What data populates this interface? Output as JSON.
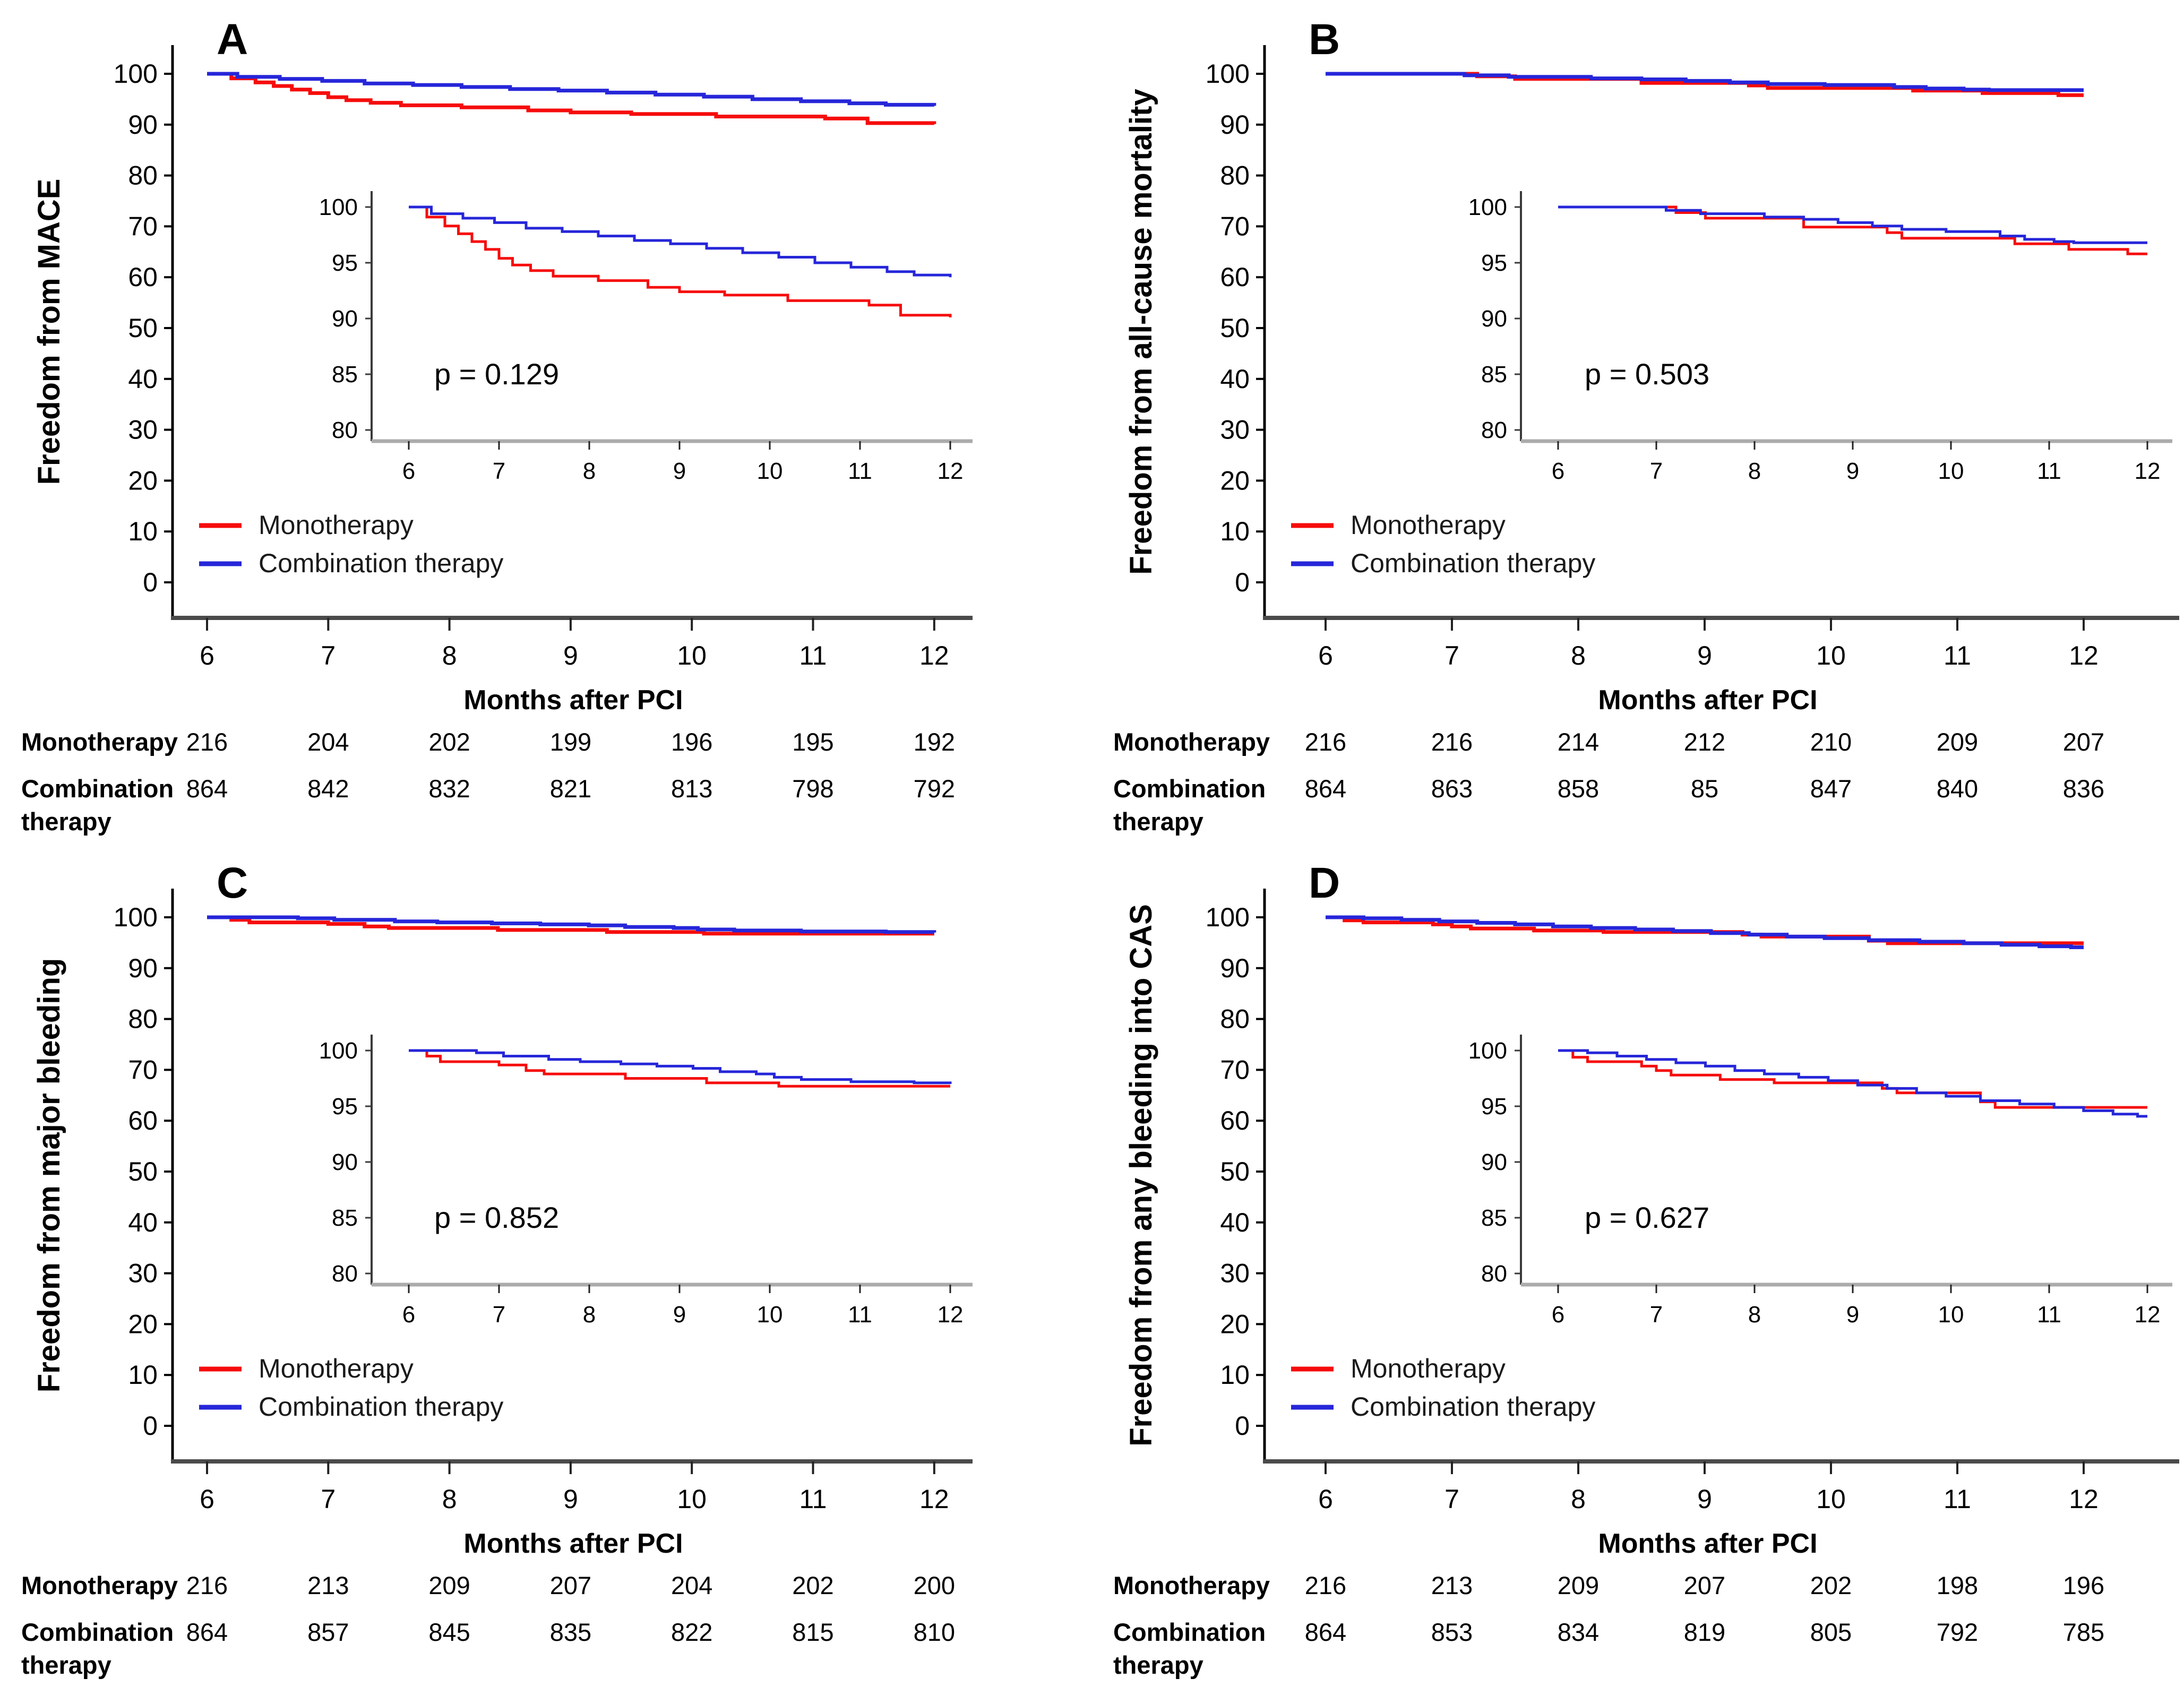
{
  "figure": {
    "background": "#ffffff",
    "description_labels": [
      "A",
      "B",
      "C",
      "D"
    ]
  },
  "colors": {
    "monotherapy": "#f60c0c",
    "combination": "#2626d9",
    "main_axis_line": "#4a4a4a",
    "inset_axis_line": "#ababab",
    "tick_text": "#000000"
  },
  "chart_data": [
    {
      "type": "line",
      "step": true,
      "panel": "A",
      "ylabel": "Freedom from MACE",
      "xlabel": "Months after PCI",
      "xlim": [
        6,
        12
      ],
      "ylim_main": [
        0,
        100
      ],
      "ylim_inset": [
        80,
        100
      ],
      "x_ticks": [
        6,
        7,
        8,
        9,
        10,
        11,
        12
      ],
      "y_ticks_main": [
        100,
        90,
        80,
        70,
        60,
        50,
        40,
        30,
        20,
        10,
        0
      ],
      "y_ticks_inset": [
        100,
        95,
        90,
        85,
        80
      ],
      "p_value_text": "p = 0.129",
      "legend": [
        "Monotherapy",
        "Combination therapy"
      ],
      "series": [
        {
          "name": "Monotherapy",
          "color_key": "monotherapy",
          "points": [
            [
              6,
              100
            ],
            [
              6.2,
              99.1
            ],
            [
              6.4,
              98.3
            ],
            [
              6.55,
              97.6
            ],
            [
              6.7,
              96.9
            ],
            [
              6.85,
              96.2
            ],
            [
              7.0,
              95.4
            ],
            [
              7.15,
              94.8
            ],
            [
              7.35,
              94.3
            ],
            [
              7.6,
              93.8
            ],
            [
              8.1,
              93.4
            ],
            [
              8.65,
              92.8
            ],
            [
              9.0,
              92.4
            ],
            [
              9.5,
              92.1
            ],
            [
              10.2,
              91.6
            ],
            [
              11.1,
              91.2
            ],
            [
              11.45,
              90.3
            ],
            [
              12,
              90.1
            ]
          ]
        },
        {
          "name": "Combination therapy",
          "color_key": "combination",
          "points": [
            [
              6,
              100
            ],
            [
              6.25,
              99.4
            ],
            [
              6.6,
              99.0
            ],
            [
              6.95,
              98.6
            ],
            [
              7.3,
              98.1
            ],
            [
              7.7,
              97.8
            ],
            [
              8.1,
              97.4
            ],
            [
              8.5,
              97.0
            ],
            [
              8.9,
              96.7
            ],
            [
              9.3,
              96.3
            ],
            [
              9.7,
              95.9
            ],
            [
              10.1,
              95.5
            ],
            [
              10.5,
              95.0
            ],
            [
              10.9,
              94.6
            ],
            [
              11.3,
              94.2
            ],
            [
              11.6,
              93.9
            ],
            [
              12,
              93.7
            ]
          ]
        }
      ],
      "risk_table": {
        "rows": [
          {
            "label_lines": [
              "Monotherapy"
            ],
            "values": [
              216,
              204,
              202,
              199,
              196,
              195,
              192
            ]
          },
          {
            "label_lines": [
              "Combination",
              "therapy"
            ],
            "values": [
              864,
              842,
              832,
              821,
              813,
              798,
              792
            ]
          }
        ]
      }
    },
    {
      "type": "line",
      "step": true,
      "panel": "B",
      "ylabel": "Freedom from all-cause mortality",
      "xlabel": "Months after PCI",
      "xlim": [
        6,
        12
      ],
      "ylim_main": [
        0,
        100
      ],
      "ylim_inset": [
        80,
        100
      ],
      "x_ticks": [
        6,
        7,
        8,
        9,
        10,
        11,
        12
      ],
      "y_ticks_main": [
        100,
        90,
        80,
        70,
        60,
        50,
        40,
        30,
        20,
        10,
        0
      ],
      "y_ticks_inset": [
        100,
        95,
        90,
        85,
        80
      ],
      "p_value_text": "p = 0.503",
      "legend": [
        "Monotherapy",
        "Combination therapy"
      ],
      "series": [
        {
          "name": "Monotherapy",
          "color_key": "monotherapy",
          "points": [
            [
              6,
              100
            ],
            [
              7.2,
              99.5
            ],
            [
              7.5,
              99.0
            ],
            [
              8.5,
              98.2
            ],
            [
              9.35,
              97.7
            ],
            [
              9.5,
              97.2
            ],
            [
              10.65,
              96.7
            ],
            [
              11.2,
              96.2
            ],
            [
              11.8,
              95.8
            ],
            [
              12,
              95.8
            ]
          ]
        },
        {
          "name": "Combination therapy",
          "color_key": "combination",
          "points": [
            [
              6,
              100
            ],
            [
              7.1,
              99.7
            ],
            [
              7.45,
              99.4
            ],
            [
              8.1,
              99.1
            ],
            [
              8.5,
              98.9
            ],
            [
              8.85,
              98.6
            ],
            [
              9.2,
              98.3
            ],
            [
              9.5,
              98.0
            ],
            [
              9.95,
              97.8
            ],
            [
              10.5,
              97.4
            ],
            [
              10.75,
              97.1
            ],
            [
              11.05,
              96.9
            ],
            [
              11.25,
              96.8
            ],
            [
              12,
              96.8
            ]
          ]
        }
      ],
      "risk_table": {
        "rows": [
          {
            "label_lines": [
              "Monotherapy"
            ],
            "values": [
              216,
              216,
              214,
              212,
              210,
              209,
              207
            ]
          },
          {
            "label_lines": [
              "Combination",
              "therapy"
            ],
            "values": [
              864,
              863,
              858,
              85,
              847,
              840,
              836
            ]
          }
        ]
      }
    },
    {
      "type": "line",
      "step": true,
      "panel": "C",
      "ylabel": "Freedom from major bleeding",
      "xlabel": "Months after PCI",
      "xlim": [
        6,
        12
      ],
      "ylim_main": [
        0,
        100
      ],
      "ylim_inset": [
        80,
        100
      ],
      "x_ticks": [
        6,
        7,
        8,
        9,
        10,
        11,
        12
      ],
      "y_ticks_main": [
        100,
        90,
        80,
        70,
        60,
        50,
        40,
        30,
        20,
        10,
        0
      ],
      "y_ticks_inset": [
        100,
        95,
        90,
        85,
        80
      ],
      "p_value_text": "p = 0.852",
      "legend": [
        "Monotherapy",
        "Combination therapy"
      ],
      "series": [
        {
          "name": "Monotherapy",
          "color_key": "monotherapy",
          "points": [
            [
              6,
              100
            ],
            [
              6.2,
              99.5
            ],
            [
              6.35,
              99.0
            ],
            [
              7.0,
              98.7
            ],
            [
              7.3,
              98.2
            ],
            [
              7.5,
              97.9
            ],
            [
              8.4,
              97.5
            ],
            [
              9.3,
              97.1
            ],
            [
              10.1,
              96.8
            ],
            [
              12,
              96.8
            ]
          ]
        },
        {
          "name": "Combination therapy",
          "color_key": "combination",
          "points": [
            [
              6,
              100
            ],
            [
              6.75,
              99.8
            ],
            [
              7.05,
              99.5
            ],
            [
              7.55,
              99.2
            ],
            [
              7.9,
              99.0
            ],
            [
              8.35,
              98.8
            ],
            [
              8.75,
              98.6
            ],
            [
              9.15,
              98.4
            ],
            [
              9.45,
              98.1
            ],
            [
              9.85,
              97.9
            ],
            [
              10.05,
              97.6
            ],
            [
              10.35,
              97.4
            ],
            [
              10.9,
              97.2
            ],
            [
              11.6,
              97.1
            ],
            [
              12,
              97.0
            ]
          ]
        }
      ],
      "risk_table": {
        "rows": [
          {
            "label_lines": [
              "Monotherapy"
            ],
            "values": [
              216,
              213,
              209,
              207,
              204,
              202,
              200
            ]
          },
          {
            "label_lines": [
              "Combination",
              "therapy"
            ],
            "values": [
              864,
              857,
              845,
              835,
              822,
              815,
              810
            ]
          }
        ]
      }
    },
    {
      "type": "line",
      "step": true,
      "panel": "D",
      "ylabel": "Freedom from any bleeding into CAS",
      "xlabel": "Months after PCI",
      "xlim": [
        6,
        12
      ],
      "ylim_main": [
        0,
        100
      ],
      "ylim_inset": [
        80,
        100
      ],
      "x_ticks": [
        6,
        7,
        8,
        9,
        10,
        11,
        12
      ],
      "y_ticks_main": [
        100,
        90,
        80,
        70,
        60,
        50,
        40,
        30,
        20,
        10,
        0
      ],
      "y_ticks_inset": [
        100,
        95,
        90,
        85,
        80
      ],
      "p_value_text": "p = 0.627",
      "legend": [
        "Monotherapy",
        "Combination therapy"
      ],
      "series": [
        {
          "name": "Monotherapy",
          "color_key": "monotherapy",
          "points": [
            [
              6,
              100
            ],
            [
              6.15,
              99.4
            ],
            [
              6.3,
              99.0
            ],
            [
              6.85,
              98.6
            ],
            [
              7.0,
              98.2
            ],
            [
              7.15,
              97.8
            ],
            [
              7.65,
              97.4
            ],
            [
              8.2,
              97.1
            ],
            [
              9.3,
              96.6
            ],
            [
              9.45,
              96.2
            ],
            [
              10.3,
              95.4
            ],
            [
              10.45,
              94.9
            ],
            [
              12,
              94.9
            ]
          ]
        },
        {
          "name": "Combination therapy",
          "color_key": "combination",
          "points": [
            [
              6,
              100
            ],
            [
              6.3,
              99.8
            ],
            [
              6.6,
              99.5
            ],
            [
              6.9,
              99.2
            ],
            [
              7.2,
              98.9
            ],
            [
              7.5,
              98.6
            ],
            [
              7.8,
              98.2
            ],
            [
              8.1,
              97.9
            ],
            [
              8.45,
              97.6
            ],
            [
              8.75,
              97.3
            ],
            [
              9.05,
              96.9
            ],
            [
              9.35,
              96.6
            ],
            [
              9.65,
              96.2
            ],
            [
              9.95,
              95.9
            ],
            [
              10.3,
              95.5
            ],
            [
              10.7,
              95.2
            ],
            [
              11.05,
              94.9
            ],
            [
              11.35,
              94.6
            ],
            [
              11.65,
              94.3
            ],
            [
              11.9,
              94.1
            ],
            [
              12,
              94.1
            ]
          ]
        }
      ],
      "risk_table": {
        "rows": [
          {
            "label_lines": [
              "Monotherapy"
            ],
            "values": [
              216,
              213,
              209,
              207,
              202,
              198,
              196
            ]
          },
          {
            "label_lines": [
              "Combination",
              "therapy"
            ],
            "values": [
              864,
              853,
              834,
              819,
              805,
              792,
              785
            ]
          }
        ]
      }
    }
  ]
}
